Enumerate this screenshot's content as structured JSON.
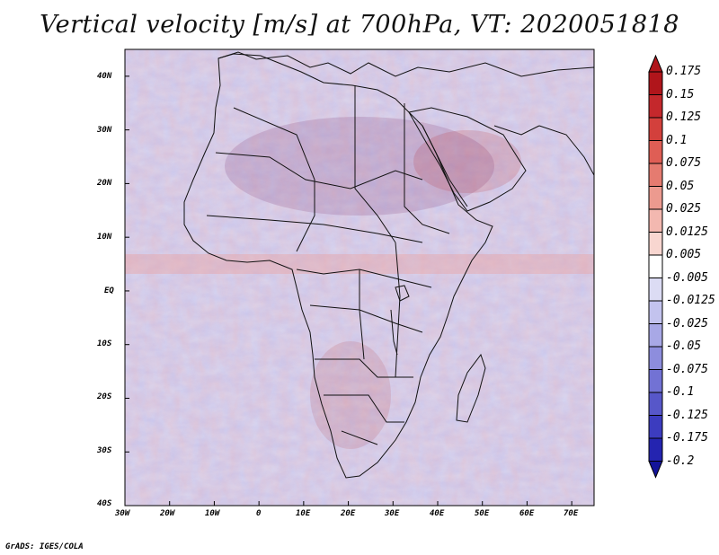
{
  "title": "Vertical velocity [m/s] at 700hPa, VT: 2020051818",
  "credit": "GrADS: IGES/COLA",
  "map": {
    "lon_ticks": [
      "30W",
      "20W",
      "10W",
      "0",
      "10E",
      "20E",
      "30E",
      "40E",
      "50E",
      "60E",
      "70E"
    ],
    "lat_ticks": [
      "40N",
      "30N",
      "20N",
      "10N",
      "EQ",
      "10S",
      "20S",
      "30S",
      "40S"
    ],
    "lon_range": [
      -30,
      75
    ],
    "lat_range": [
      -40,
      45
    ]
  },
  "colorbar": {
    "levels": [
      "0.175",
      "0.15",
      "0.125",
      "0.1",
      "0.075",
      "0.05",
      "0.025",
      "0.0125",
      "0.005",
      "-0.005",
      "-0.0125",
      "-0.025",
      "-0.05",
      "-0.075",
      "-0.1",
      "-0.125",
      "-0.175",
      "-0.2"
    ],
    "colors": [
      "#b0151b",
      "#c4282c",
      "#d3403c",
      "#df5e55",
      "#e57b70",
      "#ec9a8f",
      "#f3b8b0",
      "#f8d6d0",
      "#ffffff",
      "#dcdcf4",
      "#c3c3ee",
      "#a8a8e6",
      "#8d8ddd",
      "#7272d4",
      "#5757c9",
      "#3c3cbf",
      "#2424b0",
      "#14149a"
    ]
  }
}
